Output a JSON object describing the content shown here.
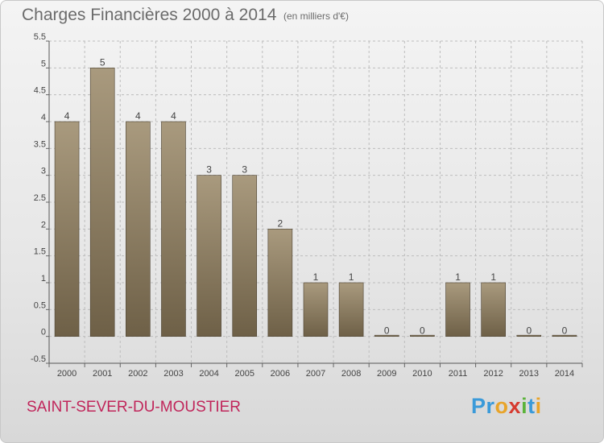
{
  "header": {
    "title": "Charges Financières 2000 à 2014",
    "subtitle": "(en milliers d'€)"
  },
  "footer": {
    "commune": "SAINT-SEVER-DU-MOUSTIER",
    "logo_letters": [
      {
        "ch": "P",
        "color": "#3a9ad9"
      },
      {
        "ch": "r",
        "color": "#3a9ad9"
      },
      {
        "ch": "o",
        "color": "#e8a42a"
      },
      {
        "ch": "x",
        "color": "#d63a2f"
      },
      {
        "ch": "i",
        "color": "#5bb33a"
      },
      {
        "ch": "t",
        "color": "#3a9ad9"
      },
      {
        "ch": "i",
        "color": "#e8a42a"
      }
    ]
  },
  "colors": {
    "bar_top": "#a99a7e",
    "bar_bottom": "#6e6047",
    "bar_edge": "#4a4030",
    "grid": "#bdbdbd",
    "accent": "#c0255a"
  },
  "chart_data": {
    "type": "bar",
    "categories": [
      "2000",
      "2001",
      "2002",
      "2003",
      "2004",
      "2005",
      "2006",
      "2007",
      "2008",
      "2009",
      "2010",
      "2011",
      "2012",
      "2013",
      "2014"
    ],
    "values": [
      4,
      5,
      4,
      4,
      3,
      3,
      2,
      1,
      1,
      0,
      0,
      1,
      1,
      0,
      0
    ],
    "data_labels": [
      "4",
      "5",
      "4",
      "4",
      "3",
      "3",
      "2",
      "1",
      "1",
      "0",
      "0",
      "1",
      "1",
      "0",
      "0"
    ],
    "ylim": [
      -0.5,
      5.5
    ],
    "yticks": [
      -0.5,
      0,
      0.5,
      1,
      1.5,
      2,
      2.5,
      3,
      3.5,
      4,
      4.5,
      5,
      5.5
    ],
    "ytick_labels": [
      "-0.5",
      "0",
      "0.5",
      "1",
      "1.5",
      "2",
      "2.5",
      "3",
      "3.5",
      "4",
      "4.5",
      "5",
      "5.5"
    ],
    "grid": true,
    "xlabel": "",
    "ylabel": ""
  }
}
